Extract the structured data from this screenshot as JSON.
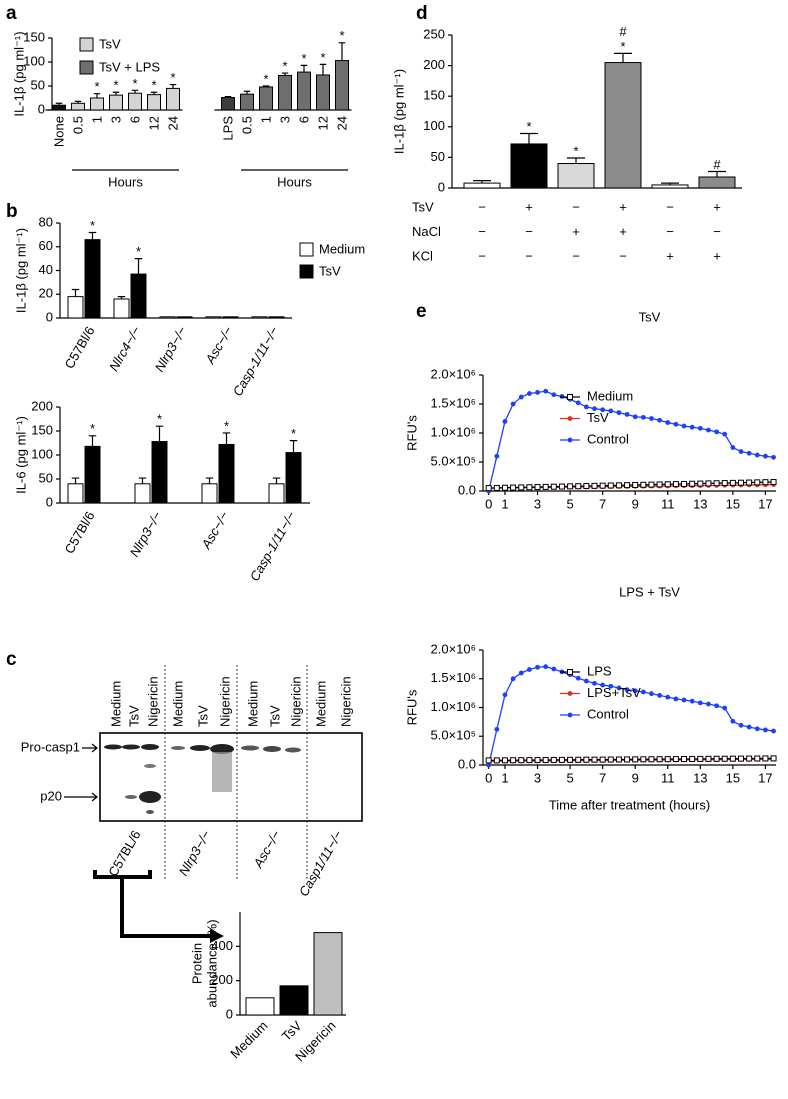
{
  "panel_labels": [
    "a",
    "b",
    "c",
    "d",
    "e"
  ],
  "blot": {
    "lanes": [
      [
        "Medium",
        "TsV",
        "Nigericin"
      ],
      [
        "Medium",
        "TsV",
        "Nigericin"
      ],
      [
        "Medium",
        "TsV",
        "Nigericin"
      ],
      [
        "Medium",
        "Nigericin"
      ]
    ],
    "bands": [
      "Pro-casp1",
      "p20"
    ],
    "genotypes": [
      "C57BL/6",
      "Nlrp3−/−",
      "Asc−/−",
      "Casp1/11−/−"
    ],
    "genotype_italic": [
      false,
      true,
      true,
      true
    ]
  },
  "chart_data": [
    {
      "type": "grouped-time-bar",
      "ylabel": "IL-1β (pg ml⁻¹)",
      "ylim": [
        0,
        150
      ],
      "yticks": [
        0,
        50,
        100,
        150
      ],
      "legend": [
        {
          "name": "TsV",
          "color": "#d4d4d4"
        },
        {
          "name": "TsV + LPS",
          "color": "#6e6e6e"
        }
      ],
      "groups": [
        {
          "label": "Hours",
          "categories": [
            "None",
            "0.5",
            "1",
            "3",
            "6",
            "12",
            "24"
          ],
          "values": [
            10,
            14,
            25,
            31,
            35,
            32,
            45
          ],
          "errors": [
            4,
            4,
            9,
            6,
            6,
            5,
            8
          ],
          "colors": [
            "#111111",
            "#d4d4d4",
            "#d4d4d4",
            "#d4d4d4",
            "#d4d4d4",
            "#d4d4d4",
            "#d4d4d4"
          ],
          "stars": [
            null,
            null,
            "*",
            "*",
            "*",
            "*",
            "*"
          ]
        },
        {
          "label": "Hours",
          "categories": [
            "LPS",
            "0.5",
            "1",
            "3",
            "6",
            "12",
            "24"
          ],
          "values": [
            26,
            33,
            48,
            72,
            79,
            73,
            103
          ],
          "errors": [
            2,
            6,
            2,
            5,
            14,
            22,
            37
          ],
          "colors": [
            "#3c3c3c",
            "#6e6e6e",
            "#6e6e6e",
            "#6e6e6e",
            "#6e6e6e",
            "#6e6e6e",
            "#6e6e6e"
          ],
          "stars": [
            null,
            null,
            "*",
            "*",
            "*",
            "*",
            "*"
          ]
        }
      ]
    },
    {
      "type": "bar",
      "ylabel": "IL-1β (pg ml⁻¹)",
      "ylim": [
        0,
        80
      ],
      "yticks": [
        0,
        20,
        40,
        60,
        80
      ],
      "categories": [
        "C57Bl/6",
        "Nlrc4−/−",
        "Nlrp3−/−",
        "Asc−/−",
        "Casp-1/11−/−"
      ],
      "italic": [
        false,
        true,
        true,
        true,
        true
      ],
      "series": [
        {
          "name": "Medium",
          "color": "#ffffff",
          "values": [
            18,
            16,
            1,
            1,
            1
          ],
          "errors": [
            6,
            2,
            null,
            null,
            null
          ]
        },
        {
          "name": "TsV",
          "color": "#000000",
          "values": [
            66,
            37,
            1,
            1,
            1
          ],
          "errors": [
            6,
            13,
            null,
            null,
            null
          ],
          "stars": [
            "*",
            "*",
            null,
            null,
            null
          ]
        }
      ]
    },
    {
      "type": "bar",
      "ylabel": "IL-6 (pg ml⁻¹)",
      "ylim": [
        0,
        200
      ],
      "yticks": [
        0,
        50,
        100,
        150,
        200
      ],
      "categories": [
        "C57Bl/6",
        "Nlrp3−/−",
        "Asc−/−",
        "Casp-1/11−/−"
      ],
      "italic": [
        false,
        true,
        true,
        true
      ],
      "series": [
        {
          "name": "Medium",
          "color": "#ffffff",
          "values": [
            40,
            40,
            40,
            40
          ],
          "errors": [
            12,
            12,
            12,
            12
          ]
        },
        {
          "name": "TsV",
          "color": "#000000",
          "values": [
            118,
            128,
            122,
            105
          ],
          "errors": [
            22,
            32,
            24,
            25
          ],
          "stars": [
            "*",
            "*",
            "*",
            "*"
          ]
        }
      ]
    },
    {
      "type": "simple-bar",
      "ylabel": [
        "Protein",
        "abundance (%)"
      ],
      "ylim": [
        0,
        600
      ],
      "yticks": [
        0,
        200,
        400
      ],
      "categories": [
        "Medium",
        "TsV",
        "Nigericin"
      ],
      "values": [
        100,
        170,
        480
      ],
      "colors": [
        "#ffffff",
        "#000000",
        "#bfbfbf"
      ]
    },
    {
      "type": "condition-bar",
      "ylabel": "IL-1β (pg ml⁻¹)",
      "ylim": [
        0,
        250
      ],
      "yticks": [
        0,
        50,
        100,
        150,
        200,
        250
      ],
      "values": [
        8,
        72,
        40,
        205,
        5,
        18
      ],
      "errors": [
        4,
        17,
        9,
        15,
        3,
        9
      ],
      "colors": [
        "#ffffff",
        "#000000",
        "#d9d9d9",
        "#8c8c8c",
        "#ffffff",
        "#8c8c8c"
      ],
      "annotations": [
        null,
        [
          "*"
        ],
        [
          "*"
        ],
        [
          "*",
          "#"
        ],
        null,
        [
          "#"
        ]
      ],
      "conditions": [
        {
          "name": "TsV",
          "signs": [
            "−",
            "+",
            "−",
            "+",
            "−",
            "+"
          ]
        },
        {
          "name": "NaCl",
          "signs": [
            "−",
            "−",
            "+",
            "+",
            "−",
            "−"
          ]
        },
        {
          "name": "KCl",
          "signs": [
            "−",
            "−",
            "−",
            "−",
            "+",
            "+"
          ]
        }
      ]
    },
    {
      "type": "line",
      "title": "TsV",
      "ylabel": "RFU's",
      "xlim": [
        -0.35,
        17.65
      ],
      "xticks": [
        0,
        1,
        3,
        5,
        7,
        9,
        11,
        13,
        15,
        17
      ],
      "ylim": [
        0,
        2000000
      ],
      "yticks": [
        {
          "value": 0,
          "label": "0.0"
        },
        {
          "value": 500000,
          "label": "5.0×10⁵"
        },
        {
          "value": 1000000,
          "label": "1.0×10⁶"
        },
        {
          "value": 1500000,
          "label": "1.5×10⁶"
        },
        {
          "value": 2000000,
          "label": "2.0×10⁶"
        }
      ],
      "x": [
        0,
        0.5,
        1,
        1.5,
        2,
        2.5,
        3,
        3.5,
        4,
        4.5,
        5,
        5.5,
        6,
        6.5,
        7,
        7.5,
        8,
        8.5,
        9,
        9.5,
        10,
        10.5,
        11,
        11.5,
        12,
        12.5,
        13,
        13.5,
        14,
        14.5,
        15,
        15.5,
        16,
        16.5,
        17,
        17.5
      ],
      "series": [
        {
          "name": "Medium",
          "color": "#000000",
          "marker": "open-square",
          "values": [
            50000,
            53000,
            56000,
            59000,
            62000,
            65000,
            68000,
            71000,
            74000,
            77000,
            80000,
            83000,
            86000,
            89000,
            92000,
            95000,
            98000,
            101000,
            104000,
            107000,
            110000,
            113000,
            116000,
            119000,
            122000,
            125000,
            128000,
            131000,
            134000,
            137000,
            140000,
            143000,
            146000,
            149000,
            152000,
            155000
          ]
        },
        {
          "name": "TsV",
          "color": "#e0301e",
          "marker": "circle",
          "values": [
            50000,
            52000,
            54000,
            55000,
            57000,
            59000,
            60000,
            62000,
            64000,
            65000,
            67000,
            69000,
            70000,
            72000,
            74000,
            75000,
            77000,
            79000,
            80000,
            82000,
            84000,
            85000,
            87000,
            89000,
            90000,
            92000,
            94000,
            95000,
            97000,
            99000,
            100000,
            102000,
            104000,
            105000,
            107000,
            109000
          ]
        },
        {
          "name": "Control",
          "color": "#1f3fff",
          "marker": "circle",
          "values": [
            0,
            600000,
            1200000,
            1500000,
            1620000,
            1680000,
            1700000,
            1720000,
            1660000,
            1630000,
            1580000,
            1520000,
            1450000,
            1420000,
            1400000,
            1380000,
            1350000,
            1320000,
            1280000,
            1270000,
            1250000,
            1220000,
            1180000,
            1150000,
            1120000,
            1100000,
            1080000,
            1050000,
            1020000,
            980000,
            750000,
            680000,
            650000,
            620000,
            600000,
            580000
          ]
        }
      ]
    },
    {
      "type": "line",
      "title": "LPS + TsV",
      "ylabel": "RFU's",
      "xlabel": "Time after treatment (hours)",
      "xlim": [
        -0.35,
        17.65
      ],
      "xticks": [
        0,
        1,
        3,
        5,
        7,
        9,
        11,
        13,
        15,
        17
      ],
      "ylim": [
        0,
        2000000
      ],
      "yticks": [
        {
          "value": 0,
          "label": "0.0"
        },
        {
          "value": 500000,
          "label": "5.0×10⁵"
        },
        {
          "value": 1000000,
          "label": "1.0×10⁶"
        },
        {
          "value": 1500000,
          "label": "1.5×10⁶"
        },
        {
          "value": 2000000,
          "label": "2.0×10⁶"
        }
      ],
      "x": [
        0,
        0.5,
        1,
        1.5,
        2,
        2.5,
        3,
        3.5,
        4,
        4.5,
        5,
        5.5,
        6,
        6.5,
        7,
        7.5,
        8,
        8.5,
        9,
        9.5,
        10,
        10.5,
        11,
        11.5,
        12,
        12.5,
        13,
        13.5,
        14,
        14.5,
        15,
        15.5,
        16,
        16.5,
        17,
        17.5
      ],
      "series": [
        {
          "name": "LPS",
          "color": "#000000",
          "marker": "open-square",
          "values": [
            80000,
            81000,
            82000,
            83000,
            84000,
            85000,
            86000,
            87000,
            88000,
            89000,
            90000,
            91000,
            92000,
            93000,
            94000,
            95000,
            96000,
            97000,
            98000,
            99000,
            100000,
            101000,
            102000,
            103000,
            104000,
            105000,
            106000,
            107000,
            108000,
            109000,
            110000,
            111000,
            112000,
            113000,
            114000,
            115000
          ]
        },
        {
          "name": "LPS+TsV",
          "color": "#e0301e",
          "marker": "circle",
          "values": [
            65000,
            66000,
            67000,
            68000,
            69000,
            70000,
            71000,
            72000,
            73000,
            74000,
            75000,
            76000,
            77000,
            78000,
            79000,
            80000,
            81000,
            82000,
            83000,
            84000,
            85000,
            86000,
            87000,
            88000,
            89000,
            90000,
            91000,
            92000,
            93000,
            94000,
            95000,
            96000,
            97000,
            98000,
            99000,
            100000
          ]
        },
        {
          "name": "Control",
          "color": "#1f3fff",
          "marker": "circle",
          "values": [
            0,
            620000,
            1220000,
            1500000,
            1600000,
            1660000,
            1700000,
            1710000,
            1670000,
            1620000,
            1570000,
            1510000,
            1460000,
            1420000,
            1390000,
            1370000,
            1340000,
            1310000,
            1290000,
            1270000,
            1240000,
            1210000,
            1180000,
            1150000,
            1130000,
            1110000,
            1080000,
            1060000,
            1030000,
            990000,
            760000,
            690000,
            660000,
            630000,
            610000,
            590000
          ]
        }
      ]
    }
  ]
}
